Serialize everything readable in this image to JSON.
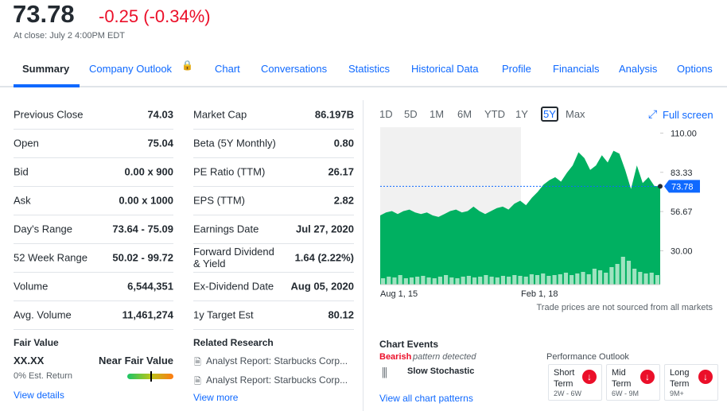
{
  "header": {
    "price": "73.78",
    "change": "-0.25 (-0.34%)",
    "close_note": "At close: July 2 4:00PM EDT"
  },
  "tabs": [
    "Summary",
    "Company Outlook",
    "Chart",
    "Conversations",
    "Statistics",
    "Historical Data",
    "Profile",
    "Financials",
    "Analysis",
    "Options"
  ],
  "stats_left": [
    [
      "Previous Close",
      "74.03"
    ],
    [
      "Open",
      "75.04"
    ],
    [
      "Bid",
      "0.00 x 900"
    ],
    [
      "Ask",
      "0.00 x 1000"
    ],
    [
      "Day's Range",
      "73.64 - 75.09"
    ],
    [
      "52 Week Range",
      "50.02 - 99.72"
    ],
    [
      "Volume",
      "6,544,351"
    ],
    [
      "Avg. Volume",
      "11,461,274"
    ]
  ],
  "stats_right": [
    [
      "Market Cap",
      "86.197B"
    ],
    [
      "Beta (5Y Monthly)",
      "0.80"
    ],
    [
      "PE Ratio (TTM)",
      "26.17"
    ],
    [
      "EPS (TTM)",
      "2.82"
    ],
    [
      "Earnings Date",
      "Jul 27, 2020"
    ],
    [
      "Forward Dividend & Yield",
      "1.64 (2.22%)"
    ],
    [
      "Ex-Dividend Date",
      "Aug 05, 2020"
    ],
    [
      "1y Target Est",
      "80.12"
    ]
  ],
  "fair_value": {
    "title": "Fair Value",
    "value": "XX.XX",
    "rating": "Near Fair Value",
    "note": "0% Est. Return",
    "link": "View details"
  },
  "research": {
    "title": "Related Research",
    "items": [
      "Analyst Report: Starbucks Corp...",
      "Analyst Report: Starbucks Corp..."
    ],
    "link": "View more"
  },
  "ranges": [
    "1D",
    "5D",
    "1M",
    "6M",
    "YTD",
    "1Y",
    "5Y",
    "Max"
  ],
  "full_screen": "Full screen",
  "chart_data": {
    "type": "area",
    "color": "#00b061",
    "values": [
      54,
      56,
      57,
      55,
      57,
      58,
      56,
      55,
      56,
      54,
      53,
      55,
      57,
      58,
      56,
      57,
      60,
      57,
      55,
      57,
      59,
      60,
      58,
      62,
      64,
      61,
      66,
      70,
      75,
      78,
      80,
      77,
      83,
      88,
      97,
      93,
      85,
      88,
      95,
      90,
      98,
      96,
      85,
      72,
      88,
      76,
      80,
      74,
      73.78
    ],
    "volume": [
      8,
      10,
      9,
      12,
      8,
      9,
      10,
      11,
      9,
      8,
      10,
      12,
      9,
      8,
      10,
      11,
      9,
      10,
      12,
      10,
      9,
      11,
      10,
      12,
      11,
      10,
      13,
      12,
      14,
      11,
      12,
      13,
      15,
      12,
      14,
      16,
      13,
      20,
      18,
      15,
      22,
      26,
      35,
      30,
      20,
      16,
      14,
      15,
      12
    ],
    "ylim": [
      7,
      114
    ],
    "yticks": [
      {
        "value": 110,
        "label": "110.00"
      },
      {
        "value": 83.33,
        "label": "83.33"
      },
      {
        "value": 56.67,
        "label": "56.67"
      },
      {
        "value": 30,
        "label": "30.00"
      }
    ],
    "current": {
      "value": 73.78,
      "label": "73.78"
    },
    "x_labels": [
      "Aug 1, 15",
      "Feb 1, 18"
    ],
    "note": "Trade prices are not sourced from all markets"
  },
  "chart_events": {
    "title": "Chart Events",
    "bearish": "Bearish",
    "detected": "pattern detected",
    "pattern": "Slow Stochastic",
    "link": "View all chart patterns"
  },
  "performance": {
    "title": "Performance Outlook",
    "items": [
      {
        "term": "Short Term",
        "range": "2W - 6W"
      },
      {
        "term": "Mid Term",
        "range": "6W - 9M"
      },
      {
        "term": "Long Term",
        "range": "9M+"
      }
    ]
  }
}
